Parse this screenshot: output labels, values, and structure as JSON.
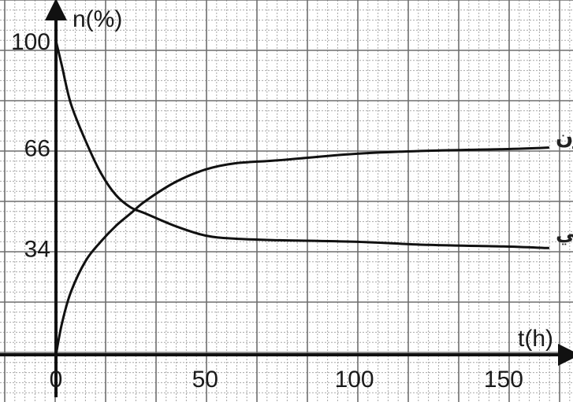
{
  "chart_data": {
    "type": "line",
    "xlabel": "t(h)",
    "ylabel": "n(%)",
    "xlim": [
      0,
      168
    ],
    "ylim": [
      0,
      104
    ],
    "x_ticks": [
      "0",
      "50",
      "100",
      "150"
    ],
    "y_ticks": [
      "34",
      "66",
      "100"
    ],
    "grid": true,
    "series": [
      {
        "name": "%الاستر المتكون",
        "x": [
          0,
          2,
          5,
          10,
          15,
          20,
          25,
          30,
          40,
          50,
          60,
          75,
          100,
          125,
          150,
          165
        ],
        "y": [
          0,
          10,
          20,
          30,
          36,
          41,
          45,
          49,
          55,
          59,
          61,
          62,
          64,
          65,
          65.5,
          66
        ]
      },
      {
        "name": "%الحمض المتبقي",
        "x": [
          0,
          2,
          5,
          10,
          15,
          20,
          25,
          30,
          40,
          50,
          60,
          75,
          100,
          125,
          150,
          165
        ],
        "y": [
          100,
          92,
          80,
          68,
          58,
          51,
          47,
          45,
          41,
          38,
          37,
          36.5,
          36,
          35,
          34.5,
          34
        ]
      }
    ]
  }
}
